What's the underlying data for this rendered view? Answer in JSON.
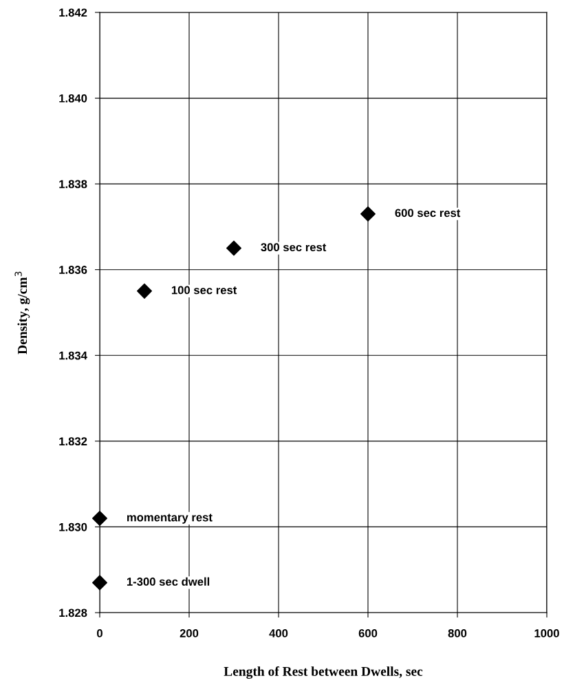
{
  "chart_data": {
    "type": "scatter",
    "xlabel": "Length of Rest between Dwells, sec",
    "ylabel": "Density, g/cm$^{3}$",
    "x": [
      0,
      0,
      100,
      300,
      600
    ],
    "series": [
      {
        "color": "#000000",
        "values": [
          1.8287,
          1.8302,
          1.8355,
          1.8365,
          1.8373
        ]
      }
    ],
    "annotations": [
      {
        "text": "1-300 sec dwell",
        "x": 0,
        "y": 1.8287
      },
      {
        "text": "momentary rest",
        "x": 0,
        "y": 1.8302
      },
      {
        "text": "100 sec rest",
        "x": 100,
        "y": 1.8355
      },
      {
        "text": "300 sec rest",
        "x": 300,
        "y": 1.8365
      },
      {
        "text": "600 sec rest",
        "x": 600,
        "y": 1.8373
      }
    ],
    "xlim": [
      0,
      1000
    ],
    "xticks": [
      0,
      200,
      400,
      600,
      800,
      1000
    ],
    "ylim": [
      1.828,
      1.842
    ],
    "yticks": [
      {
        "value": 1.828,
        "label": "1.828"
      },
      {
        "value": 1.83,
        "label": "1.830"
      },
      {
        "value": 1.832,
        "label": "1.832"
      },
      {
        "value": 1.834,
        "label": "1.834"
      },
      {
        "value": 1.836,
        "label": "1.836"
      },
      {
        "value": 1.838,
        "label": "1.838"
      },
      {
        "value": 1.84,
        "label": "1.840"
      },
      {
        "value": 1.842,
        "label": "1.842"
      }
    ],
    "grid": true,
    "marker": "diamond"
  }
}
